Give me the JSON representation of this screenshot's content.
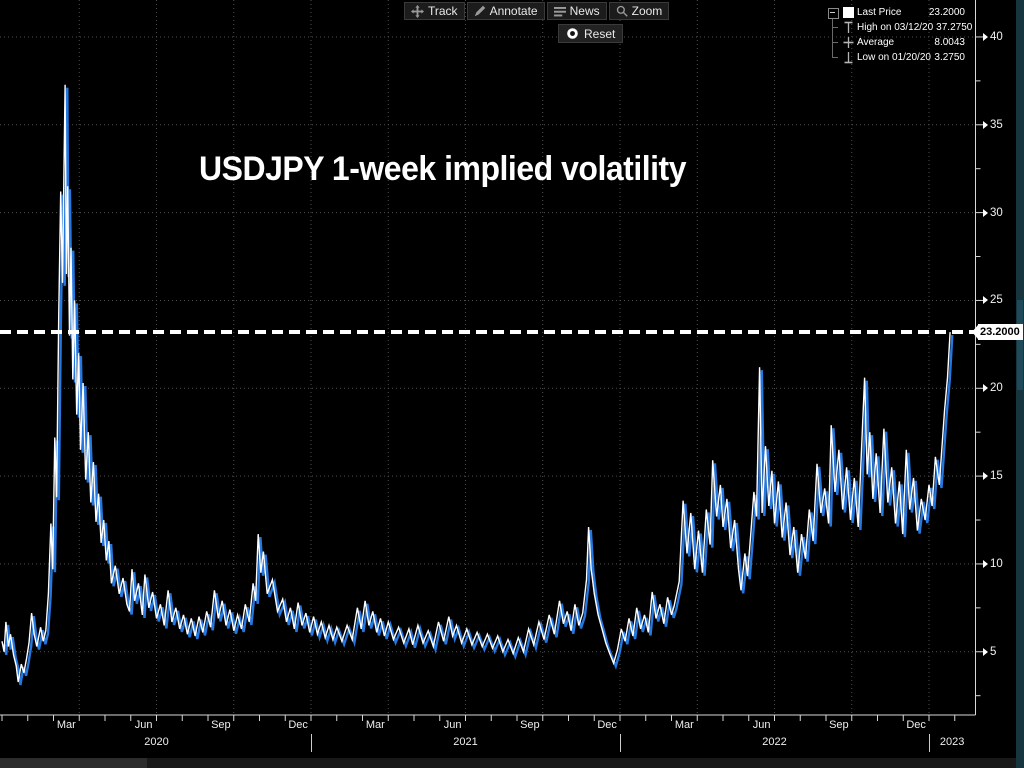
{
  "title": "USDJPY 1-week implied volatility",
  "toolbar": {
    "buttons": [
      {
        "id": "track",
        "icon": "move-icon",
        "label": "Track"
      },
      {
        "id": "annotate",
        "icon": "pencil-icon",
        "label": "Annotate"
      },
      {
        "id": "news",
        "icon": "news-lines-icon",
        "label": "News"
      },
      {
        "id": "zoom",
        "icon": "magnifier-icon",
        "label": "Zoom"
      }
    ],
    "reset": {
      "icon": "record-circle-icon",
      "label": "Reset"
    }
  },
  "legend": {
    "rows": [
      {
        "icon": "series-swatch",
        "label": "Last Price",
        "value": "23.2000",
        "expander": true
      },
      {
        "icon": "high-whisker-icon",
        "label": "High on 03/12/20",
        "value": "37.2750"
      },
      {
        "icon": "average-cross-icon",
        "label": "Average",
        "value": "8.0043"
      },
      {
        "icon": "low-whisker-icon",
        "label": "Low on 01/20/20",
        "value": "3.2750"
      }
    ]
  },
  "axis_tag": {
    "last_price": "23.2000"
  },
  "colors": {
    "background": "#000000",
    "series_main": "#ffffff",
    "series_shadow": "#2478e0",
    "grid": "#4f4f4f",
    "axis": "#d8d8d8",
    "dashed_line": "#ffffff",
    "tag_bg": "#ffffff",
    "tag_text": "#000000",
    "right_strip": "#16353f"
  },
  "chart_data": {
    "type": "line",
    "title": "USDJPY 1-week implied volatility",
    "xlabel": "",
    "ylabel": "",
    "grid": "dotted",
    "legend_position": "top-right",
    "ylim": [
      1.4,
      42.1
    ],
    "y_major_ticks": [
      40,
      35,
      30,
      25,
      20,
      15,
      10,
      5
    ],
    "y_minor_step": 2.5,
    "x_unit": "months_since_2020_01",
    "x_range": [
      0,
      37.8
    ],
    "x_month_labels": [
      {
        "label": "Mar",
        "t": 2.5
      },
      {
        "label": "Jun",
        "t": 5.5
      },
      {
        "label": "Sep",
        "t": 8.5
      },
      {
        "label": "Dec",
        "t": 11.5
      },
      {
        "label": "Mar",
        "t": 14.5
      },
      {
        "label": "Jun",
        "t": 17.5
      },
      {
        "label": "Sep",
        "t": 20.5
      },
      {
        "label": "Dec",
        "t": 23.5
      },
      {
        "label": "Mar",
        "t": 26.5
      },
      {
        "label": "Jun",
        "t": 29.5
      },
      {
        "label": "Sep",
        "t": 32.5
      },
      {
        "label": "Dec",
        "t": 35.5
      }
    ],
    "x_year_labels": [
      {
        "label": "2020",
        "t": 6
      },
      {
        "label": "2021",
        "t": 18
      },
      {
        "label": "2022",
        "t": 30
      },
      {
        "label": "2023",
        "t": 36.9
      }
    ],
    "year_separators_t": [
      12,
      24,
      36
    ],
    "quarter_grid_t": [
      3,
      6,
      9,
      12,
      15,
      18,
      21,
      24,
      27,
      30,
      33,
      36
    ],
    "last_price": 23.2,
    "high": 37.275,
    "high_date": "03/12/20",
    "average": 8.0043,
    "low": 3.275,
    "low_date": "01/20/20",
    "series": [
      {
        "name": "Last Price",
        "points": [
          [
            0,
            5.6
          ],
          [
            0.08,
            5
          ],
          [
            0.15,
            6.7
          ],
          [
            0.25,
            5.3
          ],
          [
            0.33,
            6
          ],
          [
            0.45,
            4.8
          ],
          [
            0.55,
            4.2
          ],
          [
            0.63,
            3.28
          ],
          [
            0.75,
            4.3
          ],
          [
            0.85,
            3.8
          ],
          [
            0.95,
            4.6
          ],
          [
            1.05,
            5.5
          ],
          [
            1.15,
            7.2
          ],
          [
            1.25,
            6
          ],
          [
            1.35,
            5.3
          ],
          [
            1.5,
            6.4
          ],
          [
            1.6,
            5.6
          ],
          [
            1.7,
            6.2
          ],
          [
            1.8,
            8.3
          ],
          [
            1.9,
            12.3
          ],
          [
            1.97,
            9.7
          ],
          [
            2.05,
            17.2
          ],
          [
            2.12,
            13.8
          ],
          [
            2.2,
            24
          ],
          [
            2.28,
            31.2
          ],
          [
            2.35,
            26
          ],
          [
            2.45,
            37.28
          ],
          [
            2.5,
            26.5
          ],
          [
            2.55,
            31.5
          ],
          [
            2.62,
            23
          ],
          [
            2.68,
            28
          ],
          [
            2.75,
            20.5
          ],
          [
            2.82,
            25
          ],
          [
            2.9,
            18.5
          ],
          [
            2.98,
            22
          ],
          [
            3.05,
            16.5
          ],
          [
            3.15,
            20.3
          ],
          [
            3.25,
            14.8
          ],
          [
            3.35,
            17.5
          ],
          [
            3.45,
            13.5
          ],
          [
            3.55,
            15.8
          ],
          [
            3.65,
            12.4
          ],
          [
            3.75,
            14
          ],
          [
            3.85,
            11.2
          ],
          [
            3.95,
            12.5
          ],
          [
            4.05,
            10.2
          ],
          [
            4.15,
            11.3
          ],
          [
            4.25,
            8.9
          ],
          [
            4.4,
            9.9
          ],
          [
            4.55,
            8.3
          ],
          [
            4.7,
            9.2
          ],
          [
            4.85,
            7.7
          ],
          [
            4.95,
            7.3
          ],
          [
            5.05,
            9.7
          ],
          [
            5.15,
            7.9
          ],
          [
            5.3,
            8.9
          ],
          [
            5.45,
            7.1
          ],
          [
            5.55,
            9.4
          ],
          [
            5.7,
            7.5
          ],
          [
            5.85,
            8.4
          ],
          [
            6,
            6.9
          ],
          [
            6.15,
            7.7
          ],
          [
            6.3,
            6.5
          ],
          [
            6.45,
            8.5
          ],
          [
            6.6,
            6.7
          ],
          [
            6.75,
            7.5
          ],
          [
            6.9,
            6.3
          ],
          [
            7.05,
            7.1
          ],
          [
            7.2,
            6
          ],
          [
            7.35,
            6.9
          ],
          [
            7.5,
            5.9
          ],
          [
            7.65,
            7
          ],
          [
            7.8,
            6.1
          ],
          [
            7.95,
            7.3
          ],
          [
            8.1,
            6.4
          ],
          [
            8.25,
            8.5
          ],
          [
            8.4,
            6.9
          ],
          [
            8.55,
            7.9
          ],
          [
            8.7,
            6.5
          ],
          [
            8.85,
            7.4
          ],
          [
            9,
            6.2
          ],
          [
            9.15,
            7.1
          ],
          [
            9.3,
            6.3
          ],
          [
            9.45,
            7.7
          ],
          [
            9.6,
            6.7
          ],
          [
            9.75,
            8.9
          ],
          [
            9.85,
            7.9
          ],
          [
            9.95,
            11.7
          ],
          [
            10.05,
            9.5
          ],
          [
            10.15,
            10.7
          ],
          [
            10.3,
            8.3
          ],
          [
            10.5,
            9.1
          ],
          [
            10.7,
            7.3
          ],
          [
            10.9,
            8
          ],
          [
            11.05,
            6.7
          ],
          [
            11.2,
            7.5
          ],
          [
            11.35,
            6.3
          ],
          [
            11.5,
            7.8
          ],
          [
            11.65,
            6.5
          ],
          [
            11.8,
            7.2
          ],
          [
            11.95,
            6.1
          ],
          [
            12.1,
            7
          ],
          [
            12.25,
            6
          ],
          [
            12.4,
            6.7
          ],
          [
            12.55,
            5.8
          ],
          [
            12.7,
            6.5
          ],
          [
            12.85,
            5.7
          ],
          [
            13,
            6.4
          ],
          [
            13.2,
            5.6
          ],
          [
            13.4,
            6.5
          ],
          [
            13.6,
            5.7
          ],
          [
            13.8,
            7.5
          ],
          [
            13.95,
            6.3
          ],
          [
            14.1,
            7.9
          ],
          [
            14.25,
            6.5
          ],
          [
            14.4,
            7.3
          ],
          [
            14.55,
            6.1
          ],
          [
            14.7,
            6.9
          ],
          [
            14.85,
            5.9
          ],
          [
            15,
            6.7
          ],
          [
            15.2,
            5.7
          ],
          [
            15.4,
            6.4
          ],
          [
            15.6,
            5.5
          ],
          [
            15.8,
            6.3
          ],
          [
            15.95,
            5.4
          ],
          [
            16.15,
            6.5
          ],
          [
            16.35,
            5.5
          ],
          [
            16.55,
            6.2
          ],
          [
            16.75,
            5.3
          ],
          [
            16.95,
            6.7
          ],
          [
            17.15,
            5.6
          ],
          [
            17.35,
            7
          ],
          [
            17.5,
            5.9
          ],
          [
            17.65,
            6.5
          ],
          [
            17.85,
            5.5
          ],
          [
            18.05,
            6.3
          ],
          [
            18.25,
            5.4
          ],
          [
            18.45,
            6.1
          ],
          [
            18.65,
            5.3
          ],
          [
            18.85,
            6
          ],
          [
            19.05,
            5.2
          ],
          [
            19.25,
            5.9
          ],
          [
            19.45,
            5
          ],
          [
            19.65,
            5.7
          ],
          [
            19.85,
            4.9
          ],
          [
            20.05,
            5.8
          ],
          [
            20.25,
            5
          ],
          [
            20.45,
            6.3
          ],
          [
            20.65,
            5.4
          ],
          [
            20.85,
            6.7
          ],
          [
            21.05,
            5.7
          ],
          [
            21.25,
            7.1
          ],
          [
            21.45,
            6
          ],
          [
            21.65,
            7.9
          ],
          [
            21.8,
            6.6
          ],
          [
            21.95,
            7.3
          ],
          [
            22.1,
            6.2
          ],
          [
            22.25,
            7.7
          ],
          [
            22.4,
            6.5
          ],
          [
            22.55,
            7.2
          ],
          [
            22.7,
            9.1
          ],
          [
            22.78,
            12.1
          ],
          [
            22.88,
            9.7
          ],
          [
            23,
            8.3
          ],
          [
            23.15,
            7.1
          ],
          [
            23.3,
            6.3
          ],
          [
            23.45,
            5.5
          ],
          [
            23.6,
            4.9
          ],
          [
            23.75,
            4.35
          ],
          [
            23.9,
            5.1
          ],
          [
            24.05,
            6.3
          ],
          [
            24.2,
            5.6
          ],
          [
            24.35,
            6.9
          ],
          [
            24.5,
            5.9
          ],
          [
            24.65,
            7.5
          ],
          [
            24.8,
            6.3
          ],
          [
            24.95,
            7.1
          ],
          [
            25.1,
            6.1
          ],
          [
            25.25,
            8.4
          ],
          [
            25.4,
            6.9
          ],
          [
            25.55,
            7.7
          ],
          [
            25.7,
            6.6
          ],
          [
            25.85,
            8.1
          ],
          [
            26,
            7.1
          ],
          [
            26.1,
            7.6
          ],
          [
            26.3,
            9
          ],
          [
            26.45,
            13.6
          ],
          [
            26.6,
            10.6
          ],
          [
            26.75,
            12.9
          ],
          [
            26.9,
            9.7
          ],
          [
            27.05,
            11.9
          ],
          [
            27.2,
            9.5
          ],
          [
            27.35,
            13.1
          ],
          [
            27.5,
            11.1
          ],
          [
            27.6,
            15.9
          ],
          [
            27.75,
            12.7
          ],
          [
            27.9,
            14.5
          ],
          [
            28,
            12.1
          ],
          [
            28.15,
            13.7
          ],
          [
            28.3,
            10.9
          ],
          [
            28.45,
            12.5
          ],
          [
            28.6,
            9.7
          ],
          [
            28.7,
            8.5
          ],
          [
            28.85,
            10.6
          ],
          [
            28.95,
            9.3
          ],
          [
            29.1,
            12.1
          ],
          [
            29.2,
            14.1
          ],
          [
            29.3,
            12.7
          ],
          [
            29.42,
            21.2
          ],
          [
            29.52,
            12.9
          ],
          [
            29.65,
            16.7
          ],
          [
            29.78,
            13.3
          ],
          [
            29.9,
            15.3
          ],
          [
            30,
            12.3
          ],
          [
            30.15,
            14.7
          ],
          [
            30.3,
            11.5
          ],
          [
            30.45,
            13.5
          ],
          [
            30.6,
            10.5
          ],
          [
            30.75,
            12.1
          ],
          [
            30.9,
            9.5
          ],
          [
            31.05,
            11.7
          ],
          [
            31.2,
            10.3
          ],
          [
            31.35,
            13.1
          ],
          [
            31.5,
            11.3
          ],
          [
            31.65,
            15.7
          ],
          [
            31.8,
            12.9
          ],
          [
            31.95,
            14.3
          ],
          [
            32.1,
            12.3
          ],
          [
            32.2,
            17.9
          ],
          [
            32.35,
            14.1
          ],
          [
            32.5,
            16.5
          ],
          [
            32.65,
            13.1
          ],
          [
            32.8,
            15.5
          ],
          [
            32.95,
            12.5
          ],
          [
            33.1,
            14.9
          ],
          [
            33.25,
            12.1
          ],
          [
            33.5,
            20.6
          ],
          [
            33.6,
            15.1
          ],
          [
            33.7,
            17.5
          ],
          [
            33.82,
            13.7
          ],
          [
            33.95,
            16.3
          ],
          [
            34.1,
            12.9
          ],
          [
            34.25,
            17.7
          ],
          [
            34.4,
            13.5
          ],
          [
            34.55,
            15.5
          ],
          [
            34.7,
            12.3
          ],
          [
            34.85,
            14.7
          ],
          [
            34.98,
            11.7
          ],
          [
            35.12,
            16.5
          ],
          [
            35.25,
            13.1
          ],
          [
            35.4,
            14.9
          ],
          [
            35.55,
            11.9
          ],
          [
            35.7,
            13.7
          ],
          [
            35.85,
            12.5
          ],
          [
            36,
            14.5
          ],
          [
            36.12,
            13.3
          ],
          [
            36.25,
            16.1
          ],
          [
            36.4,
            14.5
          ],
          [
            36.6,
            18.7
          ],
          [
            36.72,
            20.6
          ],
          [
            36.82,
            23.2
          ]
        ]
      }
    ]
  }
}
